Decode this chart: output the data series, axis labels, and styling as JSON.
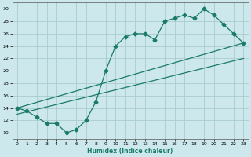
{
  "xlabel": "Humidex (Indice chaleur)",
  "ylabel": "",
  "bg_color": "#cce8ec",
  "grid_color": "#aacccc",
  "line_color": "#1a7a6a",
  "xlim": [
    -0.5,
    23.5
  ],
  "ylim": [
    9,
    31
  ],
  "xticks": [
    0,
    1,
    2,
    3,
    4,
    5,
    6,
    7,
    8,
    9,
    10,
    11,
    12,
    13,
    14,
    15,
    16,
    17,
    18,
    19,
    20,
    21,
    22,
    23
  ],
  "yticks": [
    10,
    12,
    14,
    16,
    18,
    20,
    22,
    24,
    26,
    28,
    30
  ],
  "curve1_x": [
    0,
    1,
    2,
    3,
    4,
    5,
    6,
    7,
    8,
    9,
    10,
    11,
    12,
    13,
    14,
    15,
    16,
    17,
    18,
    19,
    20,
    21,
    22,
    23
  ],
  "curve1_y": [
    14,
    13.5,
    12.5,
    11.5,
    11.5,
    10,
    10.5,
    12,
    15,
    20,
    24,
    25.5,
    26,
    26,
    25,
    28,
    28.5,
    29,
    28.5,
    30,
    29,
    27.5,
    26,
    24.5
  ],
  "marker": "D",
  "markersize": 2.5,
  "linewidth": 0.9
}
